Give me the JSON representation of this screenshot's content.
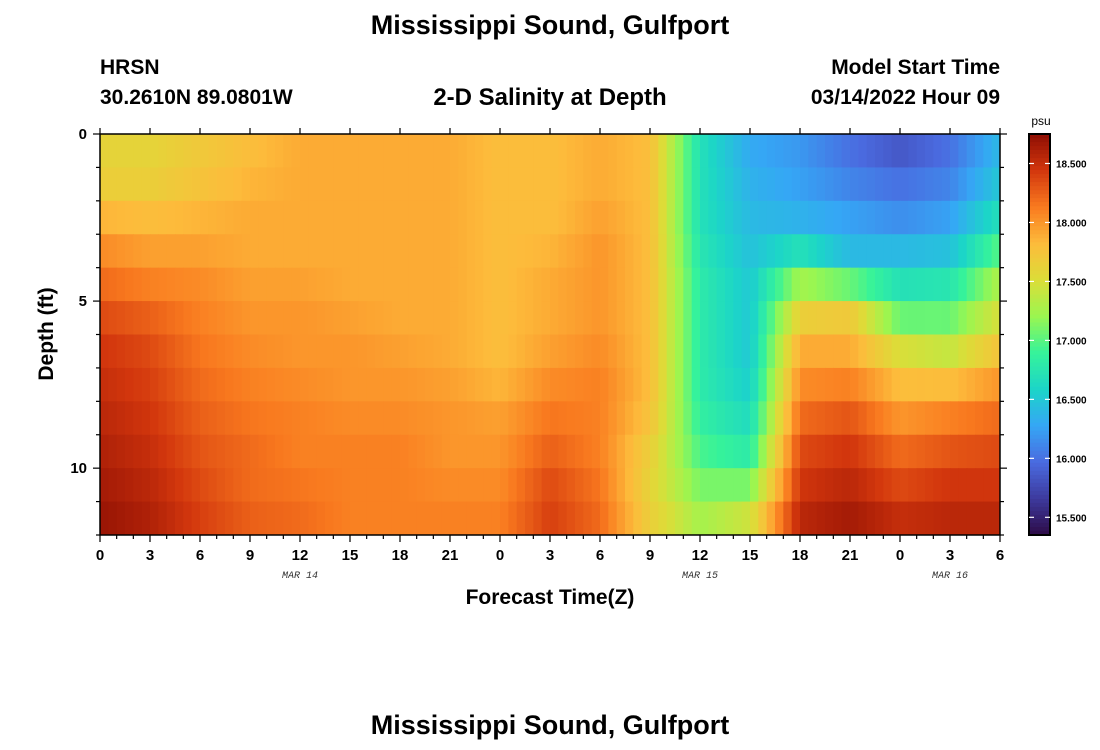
{
  "header": {
    "title": "Mississippi Sound, Gulfport",
    "station_id": "HRSN",
    "station_coords": "30.2610N  89.0801W",
    "plot_subtitle": "2-D Salinity at Depth",
    "model_start_label": "Model Start Time",
    "model_start_value": "03/14/2022 Hour 09"
  },
  "footer": {
    "title_repeat": "Mississippi Sound, Gulfport"
  },
  "colors": {
    "colormap": [
      "#2d0b47",
      "#3d3a9e",
      "#4a6be0",
      "#35a7f5",
      "#1cd5c8",
      "#36f39a",
      "#9bf650",
      "#dcdd38",
      "#fdbb3b",
      "#f97a1f",
      "#d2360d",
      "#8e0e03"
    ]
  },
  "chart_data": {
    "type": "heatmap",
    "title": "2-D Salinity at Depth",
    "xlabel": "Forecast Time(Z)",
    "ylabel": "Depth (ft)",
    "units": "psu",
    "x_hours_range": [
      0,
      54
    ],
    "y_depth_range": [
      0,
      12
    ],
    "y_inverted": true,
    "colorbar_range": [
      15.35,
      18.75
    ],
    "x_tick_labels": [
      "0",
      "3",
      "6",
      "9",
      "12",
      "15",
      "18",
      "21",
      "0",
      "3",
      "6",
      "9",
      "12",
      "15",
      "18",
      "21",
      "0",
      "3",
      "6"
    ],
    "y_tick_values": [
      0,
      5,
      10
    ],
    "y_tick_labels": [
      "0",
      "5",
      "10"
    ],
    "date_labels": [
      {
        "text": "MAR 14",
        "hour": 12
      },
      {
        "text": "MAR 15",
        "hour": 36
      },
      {
        "text": "MAR 16",
        "hour": 51
      }
    ],
    "colorbar_ticks": [
      {
        "value": 18.5,
        "label": "18.500"
      },
      {
        "value": 18.0,
        "label": "18.000"
      },
      {
        "value": 17.5,
        "label": "17.500"
      },
      {
        "value": 17.0,
        "label": "17.000"
      },
      {
        "value": 16.5,
        "label": "16.500"
      },
      {
        "value": 16.0,
        "label": "16.000"
      },
      {
        "value": 15.5,
        "label": "15.500"
      }
    ],
    "depths_ft": [
      0,
      1,
      2,
      3,
      4,
      5,
      6,
      7,
      8,
      9,
      10,
      11,
      12
    ],
    "times_hr": [
      0,
      3,
      6,
      9,
      12,
      15,
      18,
      21,
      24,
      27,
      30,
      33,
      36,
      39,
      42,
      45,
      48,
      51,
      54
    ],
    "values": [
      [
        17.6,
        17.6,
        17.7,
        17.8,
        17.9,
        17.9,
        17.9,
        17.9,
        17.8,
        17.8,
        17.9,
        17.8,
        16.7,
        16.3,
        16.2,
        16.0,
        15.8,
        16.0,
        16.4
      ],
      [
        17.6,
        17.6,
        17.7,
        17.8,
        17.9,
        17.9,
        17.9,
        17.9,
        17.8,
        17.8,
        17.9,
        17.8,
        16.7,
        16.3,
        16.2,
        16.0,
        15.9,
        16.0,
        16.4
      ],
      [
        17.7,
        17.7,
        17.8,
        17.9,
        17.9,
        17.9,
        17.9,
        17.9,
        17.8,
        17.8,
        17.9,
        17.8,
        16.7,
        16.4,
        16.3,
        16.2,
        16.1,
        16.2,
        16.6
      ],
      [
        18.0,
        17.9,
        17.9,
        17.9,
        17.9,
        17.9,
        17.9,
        17.9,
        17.8,
        17.8,
        18.0,
        17.8,
        16.7,
        16.4,
        16.4,
        16.3,
        16.2,
        16.3,
        16.8
      ],
      [
        18.1,
        18.0,
        18.0,
        17.9,
        17.9,
        17.9,
        17.9,
        17.9,
        17.8,
        17.9,
        18.0,
        17.8,
        16.8,
        16.5,
        17.0,
        16.5,
        16.6,
        16.6,
        17.2
      ],
      [
        18.3,
        18.2,
        18.1,
        18.0,
        18.0,
        17.9,
        17.9,
        17.9,
        17.8,
        17.9,
        18.0,
        17.8,
        16.8,
        16.5,
        17.5,
        17.6,
        16.8,
        16.9,
        17.4
      ],
      [
        18.4,
        18.3,
        18.1,
        18.0,
        18.0,
        18.0,
        17.9,
        17.9,
        17.8,
        17.9,
        18.0,
        17.8,
        16.8,
        16.5,
        17.8,
        17.8,
        17.3,
        17.2,
        17.6
      ],
      [
        18.5,
        18.4,
        18.2,
        18.1,
        18.0,
        18.0,
        18.0,
        17.9,
        17.8,
        18.0,
        18.1,
        17.8,
        16.8,
        16.5,
        18.0,
        18.0,
        17.7,
        17.6,
        17.9
      ],
      [
        18.5,
        18.4,
        18.2,
        18.1,
        18.1,
        18.0,
        18.0,
        18.0,
        17.9,
        18.1,
        18.1,
        17.8,
        16.8,
        16.6,
        18.1,
        18.2,
        17.9,
        18.0,
        18.1
      ],
      [
        18.6,
        18.5,
        18.3,
        18.2,
        18.1,
        18.1,
        18.1,
        18.0,
        18.0,
        18.2,
        18.1,
        17.7,
        16.9,
        16.7,
        18.3,
        18.4,
        18.1,
        18.2,
        18.3
      ],
      [
        18.6,
        18.5,
        18.3,
        18.2,
        18.1,
        18.1,
        18.1,
        18.0,
        18.0,
        18.3,
        18.1,
        17.6,
        17.0,
        16.9,
        18.4,
        18.5,
        18.3,
        18.4,
        18.4
      ],
      [
        18.7,
        18.6,
        18.4,
        18.2,
        18.2,
        18.1,
        18.1,
        18.1,
        18.1,
        18.4,
        18.2,
        17.6,
        17.2,
        17.3,
        18.5,
        18.6,
        18.4,
        18.5,
        18.5
      ],
      [
        18.7,
        18.6,
        18.4,
        18.3,
        18.2,
        18.1,
        18.1,
        18.1,
        18.1,
        18.4,
        18.2,
        17.7,
        17.3,
        17.6,
        18.6,
        18.7,
        18.6,
        18.6,
        18.6
      ]
    ]
  }
}
